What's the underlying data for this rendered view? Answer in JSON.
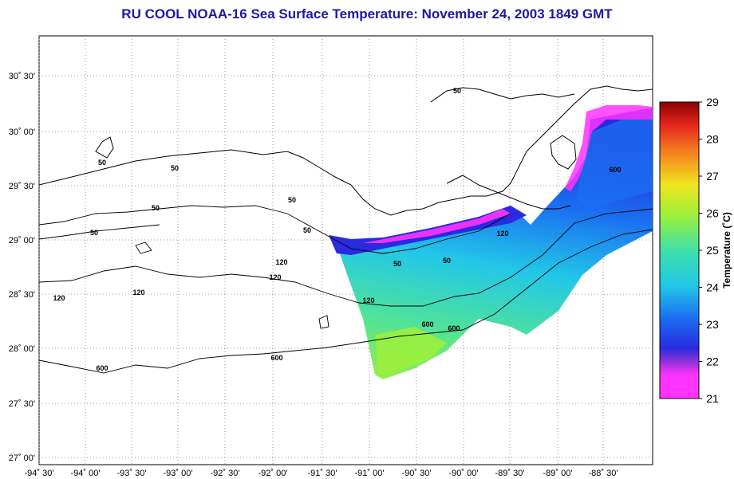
{
  "title": "RU COOL  NOAA-16  Sea Surface Temperature:  November 24, 2003 1849 GMT",
  "lat_labels": [
    "30˚ 30'",
    "30˚ 00'",
    "29˚ 30'",
    "29˚ 00'",
    "28˚ 30'",
    "28˚ 00'",
    "27˚ 30'",
    "27˚ 00'"
  ],
  "lon_labels": [
    "-94˚ 30'",
    "-94˚ 00'",
    "-93˚ 30'",
    "-93˚ 00'",
    "-92˚ 30'",
    "-92˚ 00'",
    "-91˚ 30'",
    "-91˚ 00'",
    "-90˚ 30'",
    "-90˚ 00'",
    "-89˚ 30'",
    "-89˚ 00'",
    "-88˚ 30'"
  ],
  "contour_labels": [
    "50",
    "50",
    "50",
    "50",
    "50",
    "50",
    "50",
    "50",
    "50",
    "120",
    "120",
    "120",
    "120",
    "120",
    "120",
    "600",
    "600",
    "600",
    "600",
    "600"
  ],
  "colorbar": {
    "label": "Temperature (˚C)",
    "ticks": [
      "29",
      "28",
      "27",
      "26",
      "25",
      "24",
      "23",
      "22",
      "21"
    ],
    "min": 21,
    "max": 29,
    "colors": [
      "#ff33ff",
      "#9b33d9",
      "#2a2ae0",
      "#1a6ef0",
      "#22c7e8",
      "#3fe0a8",
      "#9ef03a",
      "#f0e61e",
      "#f58a1e",
      "#e8281e",
      "#8b0000"
    ]
  }
}
